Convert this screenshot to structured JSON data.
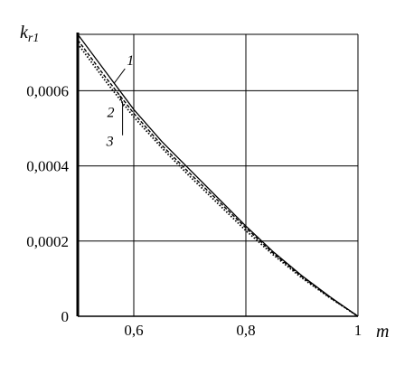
{
  "chart_data": {
    "type": "line",
    "ylabel": "k",
    "ylabel_sub": "r1",
    "xlabel": "m",
    "xlim": [
      0.5,
      1.0
    ],
    "ylim": [
      0,
      0.00075
    ],
    "x_ticks": [
      {
        "value": 0.6,
        "label": "0,6"
      },
      {
        "value": 0.8,
        "label": "0,8"
      },
      {
        "value": 1.0,
        "label": "1"
      }
    ],
    "y_ticks": [
      {
        "value": 0,
        "label": "0"
      },
      {
        "value": 0.0002,
        "label": "0,0002"
      },
      {
        "value": 0.0004,
        "label": "0,0004"
      },
      {
        "value": 0.0006,
        "label": "0,0006"
      }
    ],
    "grid": true,
    "series": [
      {
        "name": "1",
        "style": "solid",
        "x": [
          0.5,
          0.55,
          0.6,
          0.65,
          0.7,
          0.75,
          0.8,
          0.85,
          0.9,
          0.95,
          1.0
        ],
        "y": [
          0.00075,
          0.00065,
          0.00055,
          0.000465,
          0.00039,
          0.000315,
          0.00024,
          0.00017,
          0.000108,
          5.2e-05,
          0.0
        ]
      },
      {
        "name": "2",
        "style": "dashed",
        "x": [
          0.5,
          0.55,
          0.6,
          0.65,
          0.7,
          0.75,
          0.8,
          0.85,
          0.9,
          0.95,
          1.0
        ],
        "y": [
          0.000735,
          0.000635,
          0.00054,
          0.000455,
          0.00038,
          0.000308,
          0.000235,
          0.000166,
          0.000105,
          5e-05,
          0.0
        ]
      },
      {
        "name": "3",
        "style": "dotted",
        "x": [
          0.5,
          0.55,
          0.6,
          0.65,
          0.7,
          0.75,
          0.8,
          0.85,
          0.9,
          0.95,
          1.0
        ],
        "y": [
          0.000725,
          0.000625,
          0.00053,
          0.000448,
          0.000372,
          0.0003,
          0.000228,
          0.000162,
          0.000102,
          4.9e-05,
          0.0
        ]
      }
    ],
    "series_labels": [
      {
        "text": "1",
        "series": "1",
        "at_x": 0.565
      },
      {
        "text": "2",
        "series": "2",
        "at_x": 0.575
      },
      {
        "text": "3",
        "series": "3",
        "at_x": 0.58
      }
    ]
  }
}
